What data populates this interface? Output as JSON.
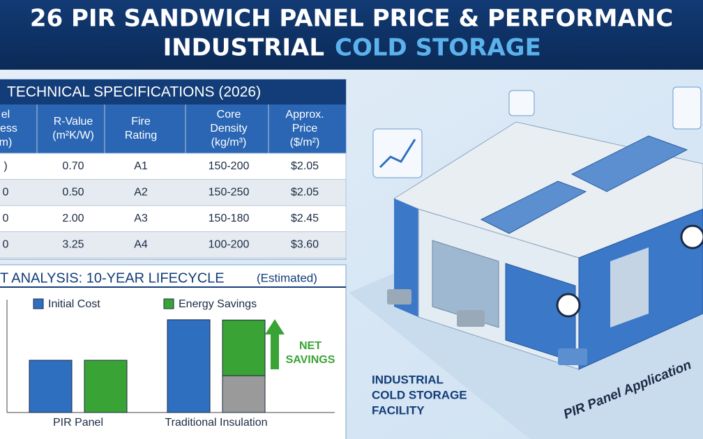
{
  "header": {
    "title_line_1": "26 PIR SANDWICH PANEL PRICE & PERFORMANC",
    "title_line_2": "INDUSTRIAL",
    "title_line_2_highlight": "COLD STORAGE"
  },
  "table": {
    "title": "TECHNICAL SPECIFICATIONS (2026)",
    "columns": [
      [
        "el",
        "ness",
        "m)"
      ],
      [
        "R-Value",
        "(m²K/W)"
      ],
      [
        "Fire",
        "Rating"
      ],
      [
        "Core",
        "Density",
        "(kg/m³)"
      ],
      [
        "Approx.",
        "Price",
        "($/m²)"
      ]
    ],
    "rows": [
      [
        ")",
        "0.70",
        "A1",
        "150-200",
        "$2.05"
      ],
      [
        "0",
        "0.50",
        "A2",
        "150-250",
        "$2.05"
      ],
      [
        "0",
        "2.00",
        "A3",
        "150-180",
        "$2.45"
      ],
      [
        "0",
        "3.25",
        "A4",
        "100-200",
        "$3.60"
      ]
    ]
  },
  "chart_data": {
    "type": "bar",
    "title": "T ANALYSIS: 10-YEAR LIFECYCLE",
    "subtitle": "(Estimated)",
    "categories": [
      "PIR Panel",
      "Traditional Insulation"
    ],
    "series": [
      {
        "name": "Initial Cost",
        "color": "#2f6fc0",
        "values": [
          2,
          3.55
        ]
      },
      {
        "color": "#9a9a9a",
        "values": [
          null,
          1.41
        ]
      },
      {
        "name": "Energy Savings",
        "color": "#3aa335",
        "values": [
          2,
          2.13
        ]
      }
    ],
    "ylim": [
      0,
      4
    ],
    "annotation": "NET SAVINGS"
  },
  "illustration": {
    "caption": [
      "INDUSTRIAL",
      "COLD STORAGE",
      "FACILITY"
    ],
    "banner": "PIR Panel Application"
  }
}
